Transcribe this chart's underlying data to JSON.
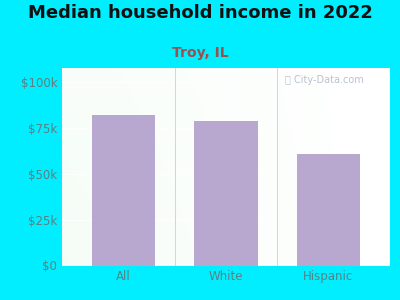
{
  "title": "Median household income in 2022",
  "subtitle": "Troy, IL",
  "categories": [
    "All",
    "White",
    "Hispanic"
  ],
  "values": [
    82000,
    79000,
    61000
  ],
  "bar_color": "#b8a8d0",
  "background_outer": "#00eeff",
  "yticks": [
    0,
    25000,
    50000,
    75000,
    100000
  ],
  "ytick_labels": [
    "$0",
    "$25k",
    "$50k",
    "$75k",
    "$100k"
  ],
  "ylim": [
    0,
    108000
  ],
  "title_fontsize": 13,
  "subtitle_fontsize": 10,
  "tick_fontsize": 8.5,
  "tick_color": "#5a8080",
  "subtitle_color": "#9b5050",
  "watermark": "City-Data.com"
}
